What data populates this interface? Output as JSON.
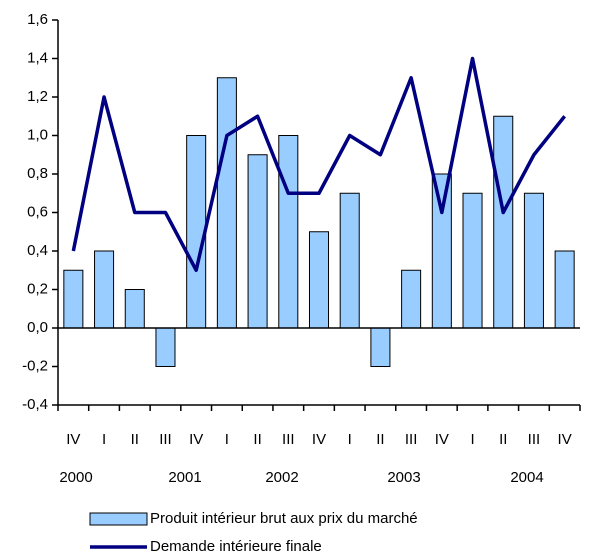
{
  "chart_data": {
    "type": "bar_line",
    "categories": [
      "IV",
      "I",
      "II",
      "III",
      "IV",
      "I",
      "II",
      "III",
      "IV",
      "I",
      "II",
      "III",
      "IV",
      "I",
      "II",
      "III",
      "IV"
    ],
    "year_labels": [
      "2000",
      "2001",
      "2002",
      "2003",
      "2004"
    ],
    "series": [
      {
        "name": "Produit intérieur brut aux prix du marché",
        "type": "bar",
        "color": "#99ccff",
        "values": [
          0.3,
          0.4,
          0.2,
          -0.2,
          1.0,
          1.3,
          0.9,
          1.0,
          0.5,
          0.7,
          -0.2,
          0.3,
          0.8,
          0.7,
          1.1,
          0.7,
          0.4
        ]
      },
      {
        "name": "Demande intérieure finale",
        "type": "line",
        "color": "#000080",
        "values": [
          0.4,
          1.2,
          0.6,
          0.6,
          0.3,
          1.0,
          1.1,
          0.7,
          0.7,
          1.0,
          0.9,
          1.3,
          0.6,
          1.4,
          0.6,
          0.9,
          1.1
        ]
      }
    ],
    "ylim": [
      -0.4,
      1.6
    ],
    "yticks": [
      {
        "value": -0.4,
        "label": "-0,4"
      },
      {
        "value": -0.2,
        "label": "-0,2"
      },
      {
        "value": 0,
        "label": "0,0"
      },
      {
        "value": 0.2,
        "label": "0,2"
      },
      {
        "value": 0.4,
        "label": "0,4"
      },
      {
        "value": 0.6,
        "label": "0,6"
      },
      {
        "value": 0.8,
        "label": "0,8"
      },
      {
        "value": 1.0,
        "label": "1,0"
      },
      {
        "value": 1.2,
        "label": "1,2"
      },
      {
        "value": 1.4,
        "label": "1,4"
      },
      {
        "value": 1.6,
        "label": "1,6"
      }
    ],
    "grid": false
  }
}
